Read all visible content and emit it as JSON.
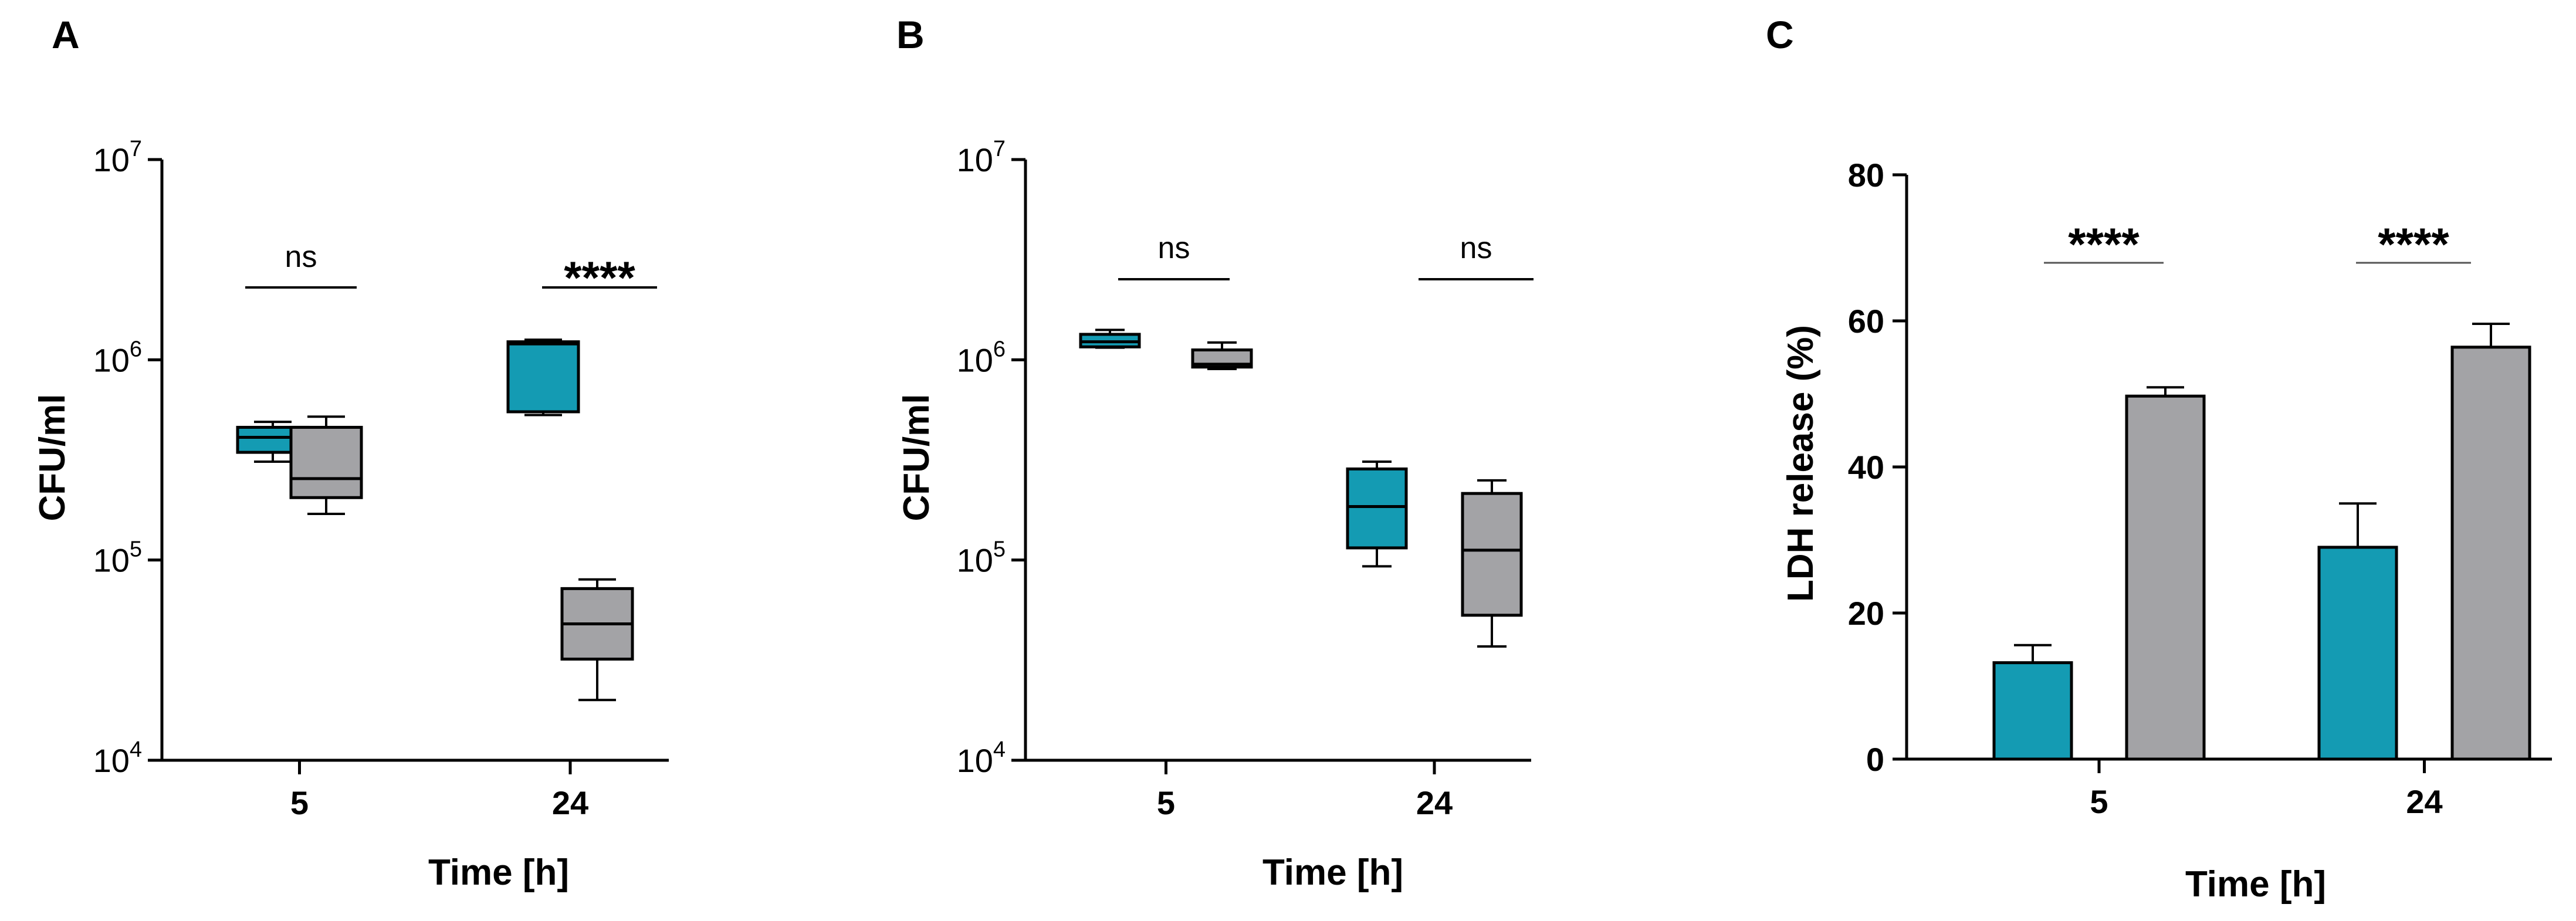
{
  "colors": {
    "series1": "#149bb3",
    "series2": "#a3a3a6",
    "axis": "#000000",
    "sig_line": "#333333"
  },
  "chart_data": [
    {
      "panel": "A",
      "type": "box",
      "xlabel": "Time [h]",
      "ylabel": "CFU/ml",
      "yscale": "log",
      "ylim": [
        10000,
        10000000
      ],
      "yticks": [
        {
          "base": "10",
          "exp": "4",
          "value": 10000
        },
        {
          "base": "10",
          "exp": "5",
          "value": 100000
        },
        {
          "base": "10",
          "exp": "6",
          "value": 1000000
        },
        {
          "base": "10",
          "exp": "7",
          "value": 10000000
        }
      ],
      "categories": [
        "5",
        "24"
      ],
      "series": [
        {
          "boxes": [
            {
              "min": 310000,
              "q1": 345000,
              "median": 410000,
              "q3": 460000,
              "max": 490000
            },
            {
              "min": 530000,
              "q1": 550000,
              "median": 1200000,
              "q3": 1230000,
              "max": 1260000
            }
          ]
        },
        {
          "boxes": [
            {
              "min": 170000,
              "q1": 205000,
              "median": 255000,
              "q3": 460000,
              "max": 520000
            },
            {
              "min": 20000,
              "q1": 32000,
              "median": 48000,
              "q3": 72000,
              "max": 80000
            }
          ]
        }
      ],
      "annotations": [
        {
          "category": "5",
          "text": "ns"
        },
        {
          "category": "24",
          "text": "****"
        }
      ]
    },
    {
      "panel": "B",
      "type": "box",
      "xlabel": "Time [h]",
      "ylabel": "CFU/ml",
      "yscale": "log",
      "ylim": [
        10000,
        10000000
      ],
      "yticks": [
        {
          "base": "10",
          "exp": "4",
          "value": 10000
        },
        {
          "base": "10",
          "exp": "5",
          "value": 100000
        },
        {
          "base": "10",
          "exp": "6",
          "value": 1000000
        },
        {
          "base": "10",
          "exp": "7",
          "value": 10000000
        }
      ],
      "categories": [
        "5",
        "24"
      ],
      "series": [
        {
          "boxes": [
            {
              "min": 1150000,
              "q1": 1160000,
              "median": 1230000,
              "q3": 1340000,
              "max": 1410000
            },
            {
              "min": 93000,
              "q1": 115000,
              "median": 185000,
              "q3": 285000,
              "max": 310000
            }
          ]
        },
        {
          "boxes": [
            {
              "min": 900000,
              "q1": 920000,
              "median": 950000,
              "q3": 1120000,
              "max": 1220000
            },
            {
              "min": 37000,
              "q1": 53000,
              "median": 112000,
              "q3": 215000,
              "max": 250000
            }
          ]
        }
      ],
      "annotations": [
        {
          "category": "5",
          "text": "ns"
        },
        {
          "category": "24",
          "text": "ns"
        }
      ]
    },
    {
      "panel": "C",
      "type": "bar",
      "xlabel": "Time [h]",
      "ylabel": "LDH release (%)",
      "ylim": [
        0,
        80
      ],
      "yticks": [
        0,
        20,
        40,
        60,
        80
      ],
      "categories": [
        "5",
        "24"
      ],
      "series": [
        {
          "values": [
            13.2,
            29.0
          ],
          "errors": [
            2.4,
            6.0
          ]
        },
        {
          "values": [
            49.7,
            56.4
          ],
          "errors": [
            1.2,
            3.2
          ]
        }
      ],
      "annotations": [
        {
          "category": "5",
          "text": "****"
        },
        {
          "category": "24",
          "text": "****"
        }
      ]
    }
  ]
}
